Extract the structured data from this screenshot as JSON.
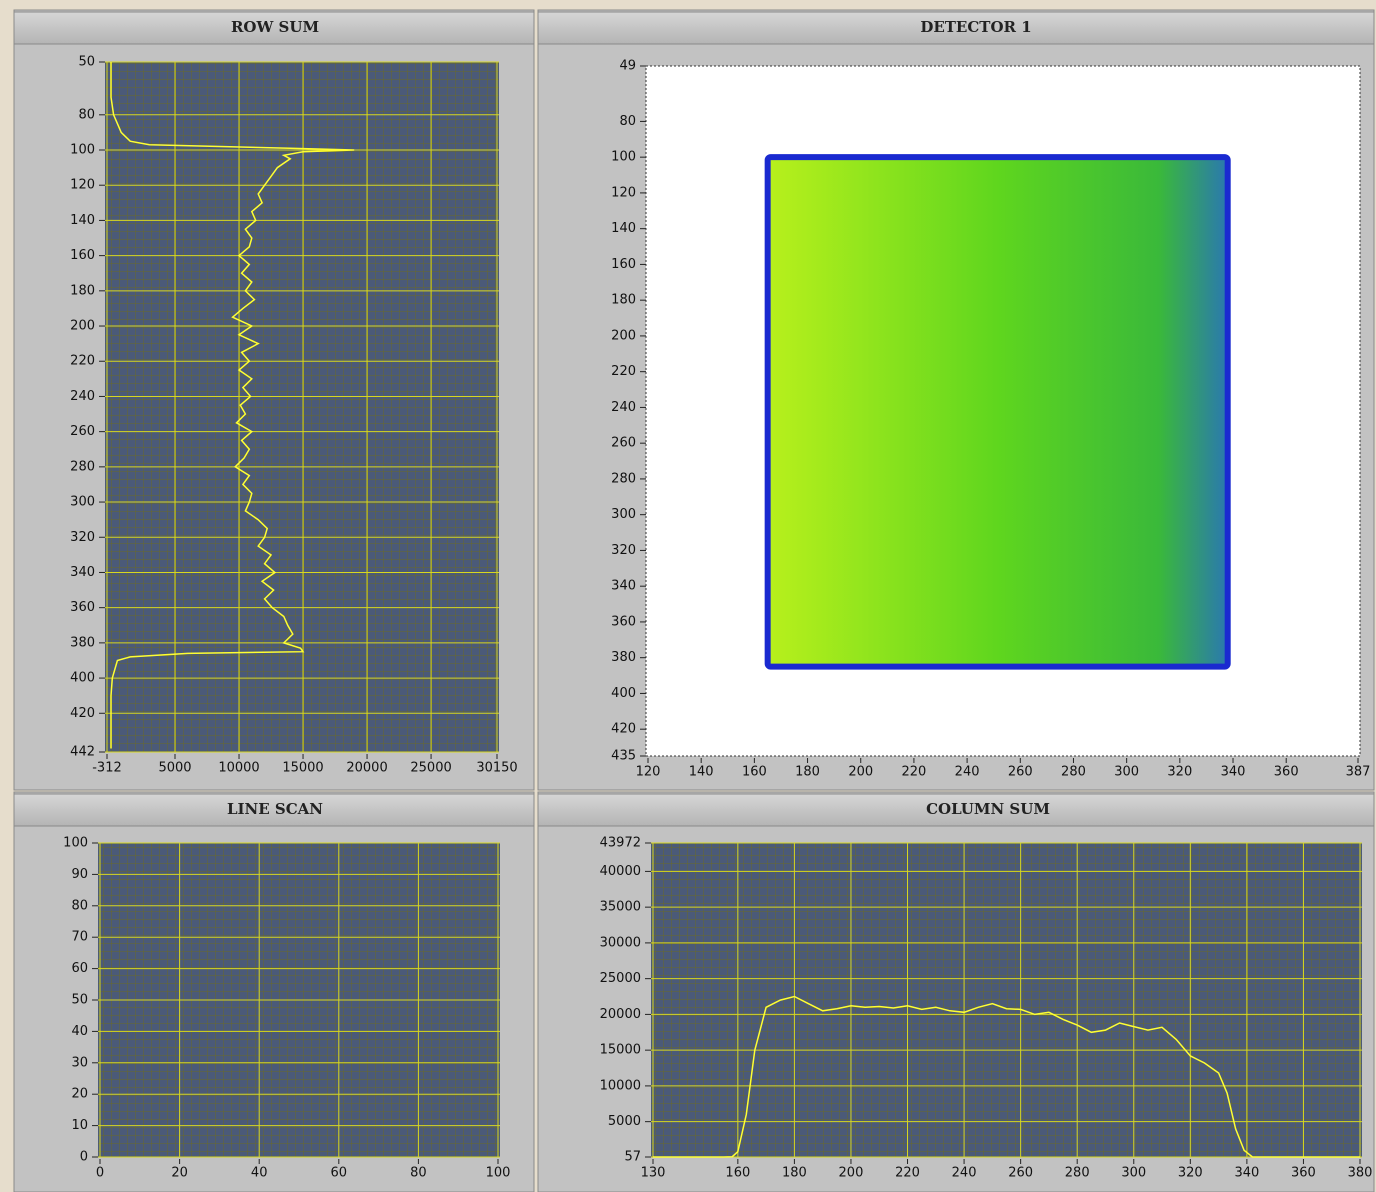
{
  "chart_data": [
    {
      "type": "line",
      "title": "ROW SUM",
      "color": "#ffff33",
      "background": "#4b5a78",
      "grid": true,
      "xlim": [
        -312,
        30150
      ],
      "xticks": [
        -312,
        5000,
        10000,
        15000,
        20000,
        25000,
        30150
      ],
      "ylim": [
        442,
        50
      ],
      "yticks": [
        50,
        80,
        100,
        120,
        140,
        160,
        180,
        200,
        220,
        240,
        260,
        280,
        300,
        320,
        340,
        360,
        380,
        400,
        420,
        442
      ],
      "y": [
        50,
        60,
        70,
        80,
        90,
        95,
        97,
        99,
        100,
        101,
        103,
        105,
        110,
        115,
        120,
        125,
        130,
        135,
        140,
        145,
        150,
        155,
        160,
        165,
        170,
        175,
        180,
        185,
        190,
        195,
        200,
        205,
        210,
        215,
        220,
        225,
        230,
        235,
        240,
        245,
        250,
        255,
        260,
        265,
        270,
        275,
        280,
        285,
        290,
        295,
        300,
        305,
        310,
        315,
        320,
        325,
        330,
        335,
        340,
        345,
        350,
        355,
        360,
        365,
        370,
        375,
        380,
        383,
        385,
        386,
        388,
        390,
        400,
        410,
        420,
        430,
        440
      ],
      "values": [
        0,
        0,
        0,
        200,
        800,
        1500,
        3000,
        14000,
        19000,
        15000,
        13500,
        14000,
        13000,
        12500,
        12000,
        11500,
        11800,
        11000,
        11300,
        10500,
        11000,
        10800,
        10000,
        10800,
        10200,
        11000,
        10500,
        11200,
        10300,
        9500,
        11000,
        10000,
        11500,
        10200,
        10800,
        10000,
        11000,
        10300,
        10900,
        10100,
        10500,
        9800,
        11000,
        10200,
        10800,
        10400,
        9700,
        10800,
        10300,
        11000,
        10800,
        10500,
        11500,
        12200,
        12000,
        11500,
        12500,
        12000,
        12800,
        11800,
        12700,
        12000,
        12600,
        13500,
        13800,
        14200,
        13500,
        14800,
        15000,
        6000,
        1500,
        500,
        100,
        0,
        0,
        0,
        0
      ]
    },
    {
      "type": "image",
      "title": "DETECTOR 1",
      "background": "#ffffff",
      "grid": false,
      "xlim": [
        120,
        387
      ],
      "xticks": [
        120,
        140,
        160,
        180,
        200,
        220,
        240,
        260,
        280,
        300,
        320,
        340,
        360,
        387
      ],
      "ylim": [
        435,
        49
      ],
      "yticks": [
        49,
        80,
        100,
        120,
        140,
        160,
        180,
        200,
        220,
        240,
        260,
        280,
        300,
        320,
        340,
        360,
        380,
        400,
        420,
        435
      ]
    },
    {
      "type": "line",
      "title": "LINE SCAN",
      "color": "#ffff33",
      "background": "#4b5a78",
      "grid": true,
      "xlim": [
        0,
        100
      ],
      "xticks": [
        0,
        20,
        40,
        60,
        80,
        100
      ],
      "ylim": [
        0,
        100
      ],
      "yticks": [
        0,
        10,
        20,
        30,
        40,
        50,
        60,
        70,
        80,
        90,
        100
      ]
    },
    {
      "type": "line",
      "title": "COLUMN SUM",
      "color": "#ffff33",
      "background": "#4b5a78",
      "grid": true,
      "xlim": [
        130,
        380
      ],
      "xticks": [
        130,
        160,
        180,
        200,
        220,
        240,
        260,
        280,
        300,
        320,
        340,
        360,
        380
      ],
      "ylim": [
        57,
        43972
      ],
      "yticks": [
        57,
        5000,
        10000,
        15000,
        20000,
        25000,
        30000,
        35000,
        40000,
        43972
      ],
      "x": [
        130,
        135,
        140,
        145,
        150,
        155,
        158,
        160,
        163,
        166,
        170,
        175,
        180,
        185,
        190,
        195,
        200,
        205,
        210,
        215,
        220,
        225,
        230,
        235,
        240,
        245,
        250,
        255,
        260,
        265,
        270,
        275,
        280,
        285,
        290,
        295,
        300,
        305,
        310,
        315,
        320,
        325,
        330,
        333,
        336,
        339,
        342,
        350,
        360,
        370,
        380
      ],
      "values": [
        57,
        57,
        57,
        57,
        57,
        57,
        100,
        800,
        6000,
        15000,
        21000,
        22000,
        22500,
        21500,
        20500,
        20800,
        21200,
        21000,
        21100,
        20900,
        21200,
        20700,
        21000,
        20500,
        20300,
        21000,
        21500,
        20800,
        20700,
        20000,
        20300,
        19300,
        18500,
        17500,
        17800,
        18800,
        18300,
        17800,
        18200,
        16500,
        14200,
        13200,
        11800,
        9000,
        4000,
        1000,
        57,
        57,
        57,
        57,
        57
      ]
    }
  ]
}
